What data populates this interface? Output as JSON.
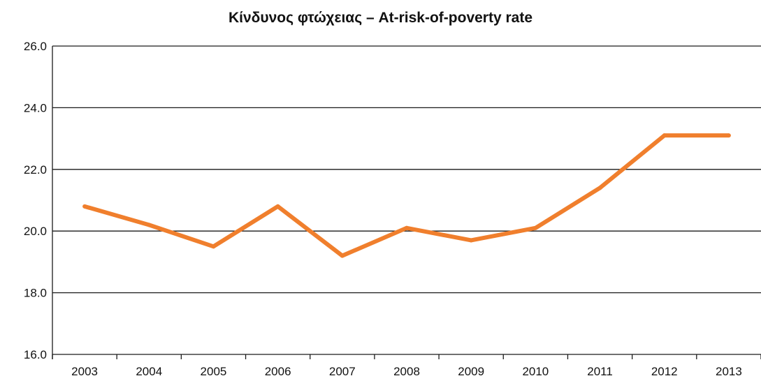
{
  "chart_data": {
    "type": "line",
    "title": "Κίνδυνος φτώχειας – At-risk-of-poverty rate",
    "xlabel": "",
    "ylabel": "",
    "categories": [
      "2003",
      "2004",
      "2005",
      "2006",
      "2007",
      "2008",
      "2009",
      "2010",
      "2011",
      "2012",
      "2013"
    ],
    "series": [
      {
        "values": [
          20.8,
          20.2,
          19.5,
          20.8,
          19.2,
          20.1,
          19.7,
          20.1,
          21.4,
          23.1,
          23.1
        ],
        "color": "#F07F2D"
      }
    ],
    "ylim": [
      16.0,
      26.0
    ],
    "yticks": [
      "16.0",
      "18.0",
      "20.0",
      "22.0",
      "24.0",
      "26.0"
    ],
    "grid": "horizontal",
    "legend": "none"
  }
}
